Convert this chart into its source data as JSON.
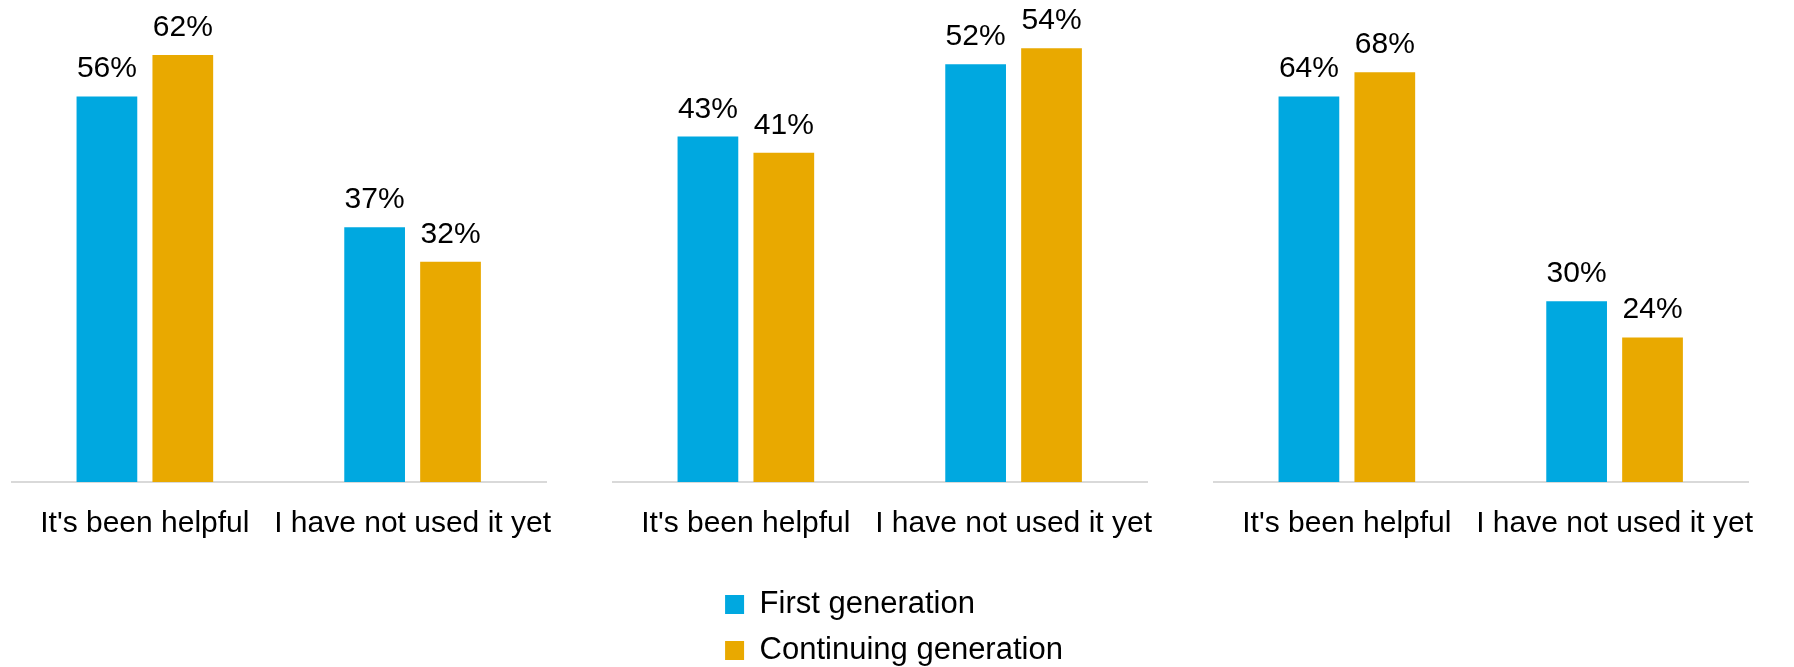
{
  "chart_data": [
    {
      "type": "bar",
      "categories": [
        "It's been helpful",
        "I have not used it yet"
      ],
      "series": [
        {
          "color": "#00a8e0",
          "values": [
            56,
            37
          ],
          "value_labels": [
            "56%",
            "37%"
          ]
        },
        {
          "color": "#e9a900",
          "values": [
            62,
            32
          ],
          "value_labels": [
            "62%",
            "32%"
          ]
        }
      ],
      "ylim": [
        0,
        70
      ],
      "tick_labels": "x",
      "legend": false
    },
    {
      "type": "bar",
      "categories": [
        "It's been helpful",
        "I have not used it yet"
      ],
      "series": [
        {
          "name": "First generation",
          "color": "#00a8e0",
          "values": [
            43,
            52
          ],
          "value_labels": [
            "43%",
            "52%"
          ]
        },
        {
          "name": "Continuing generation",
          "color": "#e9a900",
          "values": [
            41,
            54
          ],
          "value_labels": [
            "41%",
            "54%"
          ]
        }
      ],
      "ylim": [
        0,
        60
      ],
      "tick_labels": "x",
      "legend": "bottom"
    },
    {
      "type": "bar",
      "categories": [
        "It's been helpful",
        "I have not used it yet"
      ],
      "series": [
        {
          "color": "#00a8e0",
          "values": [
            64,
            30
          ],
          "value_labels": [
            "64%",
            "30%"
          ]
        },
        {
          "color": "#e9a900",
          "values": [
            68,
            24
          ],
          "value_labels": [
            "68%",
            "24%"
          ]
        }
      ],
      "ylim": [
        0,
        80
      ],
      "tick_labels": "x",
      "legend": false
    }
  ]
}
